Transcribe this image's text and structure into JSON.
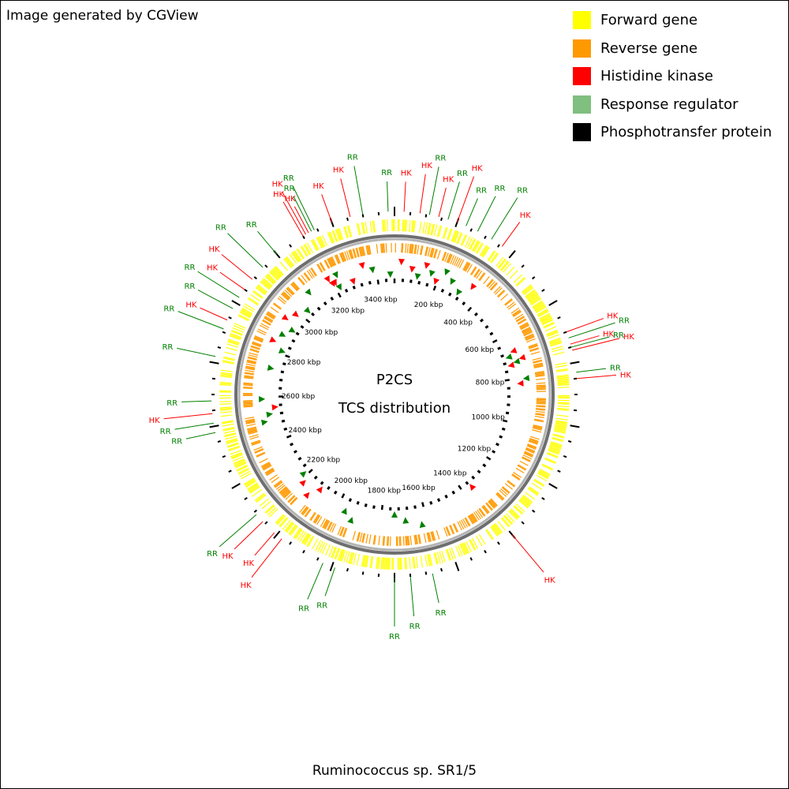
{
  "credit": "Image generated by CGView",
  "center_title": [
    "P2CS",
    "TCS distribution"
  ],
  "organism": "Ruminococcus sp. SR1/5",
  "legend": [
    {
      "label": "Forward gene",
      "color": "#ffff00"
    },
    {
      "label": "Reverse gene",
      "color": "#ff9900"
    },
    {
      "label": "Histidine kinase",
      "color": "#ff0000"
    },
    {
      "label": "Response regulator",
      "color": "#7fbf7f"
    },
    {
      "label": "Phosphotransfer protein",
      "color": "#000000"
    }
  ],
  "colors": {
    "hk": "#ff0000",
    "rr": "#008000",
    "forward": "#ffff00",
    "reverse": "#ff9900",
    "backbone": "#808080"
  },
  "genome": {
    "length_kbp": 3480,
    "tick_labels": [
      "200 kbp",
      "400 kbp",
      "600 kbp",
      "800 kbp",
      "1000 kbp",
      "1200 kbp",
      "1400 kbp",
      "1600 kbp",
      "1800 kbp",
      "2000 kbp",
      "2200 kbp",
      "2400 kbp",
      "2600 kbp",
      "2800 kbp",
      "3000 kbp",
      "3200 kbp",
      "3400 kbp"
    ],
    "tick_values_kbp": [
      200,
      400,
      600,
      800,
      1000,
      1200,
      1400,
      1600,
      1800,
      2000,
      2200,
      2400,
      2600,
      2800,
      3000,
      3200,
      3400
    ]
  },
  "features": [
    {
      "label": "RR",
      "type": "RR",
      "angle": -26
    },
    {
      "label": "HK",
      "type": "HK",
      "angle": -29
    },
    {
      "label": "RR",
      "type": "RR",
      "angle": -27
    },
    {
      "label": "HK",
      "type": "HK",
      "angle": -30
    },
    {
      "label": "HK",
      "type": "HK",
      "angle": -28
    },
    {
      "label": "HK",
      "type": "HK",
      "angle": -20
    },
    {
      "label": "HK",
      "type": "HK",
      "angle": -14
    },
    {
      "label": "RR",
      "type": "RR",
      "angle": -10
    },
    {
      "label": "RR",
      "type": "RR",
      "angle": -2
    },
    {
      "label": "HK",
      "type": "HK",
      "angle": 3
    },
    {
      "label": "HK",
      "type": "HK",
      "angle": 8
    },
    {
      "label": "RR",
      "type": "RR",
      "angle": 11
    },
    {
      "label": "HK",
      "type": "HK",
      "angle": 14
    },
    {
      "label": "RR",
      "type": "RR",
      "angle": 17
    },
    {
      "label": "HK",
      "type": "HK",
      "angle": 20
    },
    {
      "label": "RR",
      "type": "RR",
      "angle": 23
    },
    {
      "label": "RR",
      "type": "RR",
      "angle": 27
    },
    {
      "label": "RR",
      "type": "RR",
      "angle": 32
    },
    {
      "label": "HK",
      "type": "HK",
      "angle": 36
    },
    {
      "label": "HK",
      "type": "HK",
      "angle": 70
    },
    {
      "label": "RR",
      "type": "RR",
      "angle": 72
    },
    {
      "label": "HK",
      "type": "HK",
      "angle": 74
    },
    {
      "label": "RR",
      "type": "RR",
      "angle": 75
    },
    {
      "label": "HK",
      "type": "HK",
      "angle": 76
    },
    {
      "label": "RR",
      "type": "RR",
      "angle": 83
    },
    {
      "label": "HK",
      "type": "HK",
      "angle": 85
    },
    {
      "label": "HK",
      "type": "HK",
      "angle": 140
    },
    {
      "label": "RR",
      "type": "RR",
      "angle": 168
    },
    {
      "label": "RR",
      "type": "RR",
      "angle": 175
    },
    {
      "label": "RR",
      "type": "RR",
      "angle": 180
    },
    {
      "label": "RR",
      "type": "RR",
      "angle": 199
    },
    {
      "label": "RR",
      "type": "RR",
      "angle": 203
    },
    {
      "label": "HK",
      "type": "HK",
      "angle": 218
    },
    {
      "label": "HK",
      "type": "HK",
      "angle": 221
    },
    {
      "label": "HK",
      "type": "HK",
      "angle": 226
    },
    {
      "label": "RR",
      "type": "RR",
      "angle": 229
    },
    {
      "label": "RR",
      "type": "RR",
      "angle": 258
    },
    {
      "label": "RR",
      "type": "RR",
      "angle": 261
    },
    {
      "label": "HK",
      "type": "HK",
      "angle": 264
    },
    {
      "label": "RR",
      "type": "RR",
      "angle": 268
    },
    {
      "label": "RR",
      "type": "RR",
      "angle": 282
    },
    {
      "label": "RR",
      "type": "RR",
      "angle": 291
    },
    {
      "label": "HK",
      "type": "HK",
      "angle": 294
    },
    {
      "label": "RR",
      "type": "RR",
      "angle": 298
    },
    {
      "label": "RR",
      "type": "RR",
      "angle": 302
    },
    {
      "label": "HK",
      "type": "HK",
      "angle": 305
    },
    {
      "label": "HK",
      "type": "HK",
      "angle": 309
    },
    {
      "label": "RR",
      "type": "RR",
      "angle": 314
    },
    {
      "label": "RR",
      "type": "RR",
      "angle": 320
    }
  ]
}
